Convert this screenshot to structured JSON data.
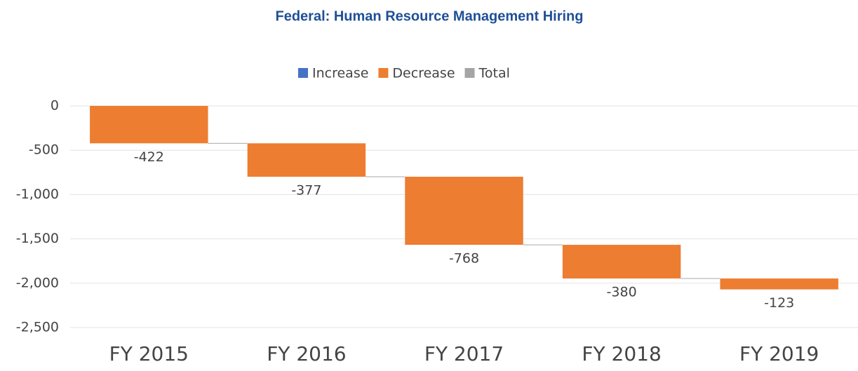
{
  "chart_data": {
    "type": "waterfall",
    "title": "Federal: Human Resource Management Hiring",
    "categories": [
      "FY 2015",
      "FY 2016",
      "FY 2017",
      "FY 2018",
      "FY 2019"
    ],
    "values": [
      -422,
      -377,
      -768,
      -380,
      -123
    ],
    "color": "#ed7d31",
    "legend": [
      {
        "name": "Increase",
        "color": "#4472c4"
      },
      {
        "name": "Decrease",
        "color": "#ed7d31"
      },
      {
        "name": "Total",
        "color": "#a5a5a5"
      }
    ],
    "ylim": [
      -2500,
      0
    ],
    "yticks": [
      0,
      -500,
      {
        "value": -1000,
        "label": "-1,000"
      },
      {
        "value": -1500,
        "label": "-1,500"
      },
      {
        "value": -2000,
        "label": "-2,000"
      },
      {
        "value": -2500,
        "label": "-2,500"
      }
    ],
    "grid": true
  }
}
